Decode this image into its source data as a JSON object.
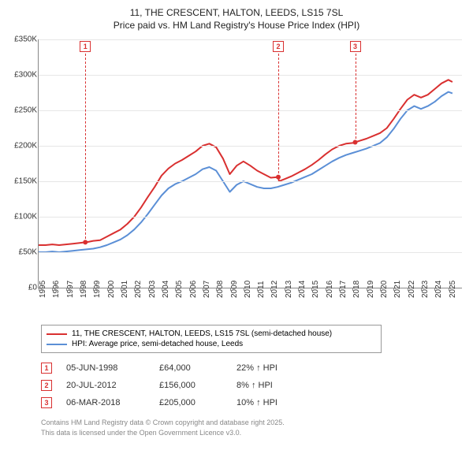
{
  "title": {
    "line1": "11, THE CRESCENT, HALTON, LEEDS, LS15 7SL",
    "line2": "Price paid vs. HM Land Registry's House Price Index (HPI)"
  },
  "chart": {
    "type": "line",
    "background_color": "#ffffff",
    "grid_color": "#e6e6e6",
    "axis_color": "#888888",
    "label_fontsize": 10,
    "line_width": 2,
    "x": {
      "min": 1995,
      "max": 2026,
      "ticks": [
        1995,
        1996,
        1997,
        1998,
        1999,
        2000,
        2001,
        2002,
        2003,
        2004,
        2005,
        2006,
        2007,
        2008,
        2009,
        2010,
        2011,
        2012,
        2013,
        2014,
        2015,
        2016,
        2017,
        2018,
        2019,
        2020,
        2021,
        2022,
        2023,
        2024,
        2025
      ]
    },
    "y": {
      "min": 0,
      "max": 350000,
      "ticks": [
        0,
        50000,
        100000,
        150000,
        200000,
        250000,
        300000,
        350000
      ],
      "tick_labels": [
        "£0",
        "£50K",
        "£100K",
        "£150K",
        "£200K",
        "£250K",
        "£300K",
        "£350K"
      ]
    },
    "series": [
      {
        "name": "11, THE CRESCENT, HALTON, LEEDS, LS15 7SL (semi-detached house)",
        "color": "#d93030",
        "points": [
          [
            1995.0,
            60000
          ],
          [
            1995.5,
            60000
          ],
          [
            1996.0,
            61000
          ],
          [
            1996.5,
            60000
          ],
          [
            1997.0,
            61000
          ],
          [
            1997.5,
            62000
          ],
          [
            1998.0,
            63000
          ],
          [
            1998.42,
            64000
          ],
          [
            1998.5,
            64000
          ],
          [
            1999.0,
            66000
          ],
          [
            1999.5,
            67000
          ],
          [
            2000.0,
            72000
          ],
          [
            2000.5,
            77000
          ],
          [
            2001.0,
            82000
          ],
          [
            2001.5,
            90000
          ],
          [
            2002.0,
            100000
          ],
          [
            2002.5,
            113000
          ],
          [
            2003.0,
            128000
          ],
          [
            2003.5,
            142000
          ],
          [
            2004.0,
            158000
          ],
          [
            2004.5,
            168000
          ],
          [
            2005.0,
            175000
          ],
          [
            2005.5,
            180000
          ],
          [
            2006.0,
            186000
          ],
          [
            2006.5,
            192000
          ],
          [
            2007.0,
            200000
          ],
          [
            2007.5,
            203000
          ],
          [
            2008.0,
            198000
          ],
          [
            2008.5,
            182000
          ],
          [
            2009.0,
            160000
          ],
          [
            2009.5,
            172000
          ],
          [
            2010.0,
            178000
          ],
          [
            2010.5,
            172000
          ],
          [
            2011.0,
            165000
          ],
          [
            2011.5,
            160000
          ],
          [
            2012.0,
            155000
          ],
          [
            2012.55,
            156000
          ],
          [
            2012.6,
            150000
          ],
          [
            2013.0,
            153000
          ],
          [
            2013.5,
            157000
          ],
          [
            2014.0,
            162000
          ],
          [
            2014.5,
            167000
          ],
          [
            2015.0,
            173000
          ],
          [
            2015.5,
            180000
          ],
          [
            2016.0,
            188000
          ],
          [
            2016.5,
            195000
          ],
          [
            2017.0,
            200000
          ],
          [
            2017.5,
            203000
          ],
          [
            2018.0,
            204000
          ],
          [
            2018.18,
            205000
          ],
          [
            2018.5,
            207000
          ],
          [
            2019.0,
            210000
          ],
          [
            2019.5,
            214000
          ],
          [
            2020.0,
            218000
          ],
          [
            2020.5,
            225000
          ],
          [
            2021.0,
            238000
          ],
          [
            2021.5,
            252000
          ],
          [
            2022.0,
            265000
          ],
          [
            2022.5,
            272000
          ],
          [
            2023.0,
            268000
          ],
          [
            2023.5,
            272000
          ],
          [
            2024.0,
            280000
          ],
          [
            2024.5,
            288000
          ],
          [
            2025.0,
            293000
          ],
          [
            2025.3,
            290000
          ]
        ]
      },
      {
        "name": "HPI: Average price, semi-detached house, Leeds",
        "color": "#5b8fd6",
        "points": [
          [
            1995.0,
            50000
          ],
          [
            1995.5,
            50000
          ],
          [
            1996.0,
            51000
          ],
          [
            1996.5,
            50000
          ],
          [
            1997.0,
            51000
          ],
          [
            1997.5,
            52000
          ],
          [
            1998.0,
            53000
          ],
          [
            1998.5,
            54000
          ],
          [
            1999.0,
            55000
          ],
          [
            1999.5,
            57000
          ],
          [
            2000.0,
            60000
          ],
          [
            2000.5,
            64000
          ],
          [
            2001.0,
            68000
          ],
          [
            2001.5,
            74000
          ],
          [
            2002.0,
            82000
          ],
          [
            2002.5,
            92000
          ],
          [
            2003.0,
            104000
          ],
          [
            2003.5,
            117000
          ],
          [
            2004.0,
            130000
          ],
          [
            2004.5,
            140000
          ],
          [
            2005.0,
            146000
          ],
          [
            2005.5,
            150000
          ],
          [
            2006.0,
            155000
          ],
          [
            2006.5,
            160000
          ],
          [
            2007.0,
            167000
          ],
          [
            2007.5,
            170000
          ],
          [
            2008.0,
            165000
          ],
          [
            2008.5,
            150000
          ],
          [
            2009.0,
            135000
          ],
          [
            2009.5,
            145000
          ],
          [
            2010.0,
            150000
          ],
          [
            2010.5,
            146000
          ],
          [
            2011.0,
            142000
          ],
          [
            2011.5,
            140000
          ],
          [
            2012.0,
            140000
          ],
          [
            2012.5,
            142000
          ],
          [
            2013.0,
            145000
          ],
          [
            2013.5,
            148000
          ],
          [
            2014.0,
            152000
          ],
          [
            2014.5,
            156000
          ],
          [
            2015.0,
            160000
          ],
          [
            2015.5,
            166000
          ],
          [
            2016.0,
            172000
          ],
          [
            2016.5,
            178000
          ],
          [
            2017.0,
            183000
          ],
          [
            2017.5,
            187000
          ],
          [
            2018.0,
            190000
          ],
          [
            2018.5,
            193000
          ],
          [
            2019.0,
            196000
          ],
          [
            2019.5,
            200000
          ],
          [
            2020.0,
            204000
          ],
          [
            2020.5,
            212000
          ],
          [
            2021.0,
            224000
          ],
          [
            2021.5,
            238000
          ],
          [
            2022.0,
            250000
          ],
          [
            2022.5,
            256000
          ],
          [
            2023.0,
            252000
          ],
          [
            2023.5,
            256000
          ],
          [
            2024.0,
            262000
          ],
          [
            2024.5,
            270000
          ],
          [
            2025.0,
            276000
          ],
          [
            2025.3,
            274000
          ]
        ]
      }
    ],
    "markers": [
      {
        "n": "1",
        "x": 1998.42,
        "y": 64000
      },
      {
        "n": "2",
        "x": 2012.55,
        "y": 156000
      },
      {
        "n": "3",
        "x": 2018.18,
        "y": 205000
      }
    ]
  },
  "legend": {
    "items": [
      {
        "label": "11, THE CRESCENT, HALTON, LEEDS, LS15 7SL (semi-detached house)",
        "color": "#d93030"
      },
      {
        "label": "HPI: Average price, semi-detached house, Leeds",
        "color": "#5b8fd6"
      }
    ]
  },
  "transactions": [
    {
      "n": "1",
      "date": "05-JUN-1998",
      "price": "£64,000",
      "delta": "22% ↑ HPI"
    },
    {
      "n": "2",
      "date": "20-JUL-2012",
      "price": "£156,000",
      "delta": "8% ↑ HPI"
    },
    {
      "n": "3",
      "date": "06-MAR-2018",
      "price": "£205,000",
      "delta": "10% ↑ HPI"
    }
  ],
  "footer": {
    "line1": "Contains HM Land Registry data © Crown copyright and database right 2025.",
    "line2": "This data is licensed under the Open Government Licence v3.0."
  }
}
